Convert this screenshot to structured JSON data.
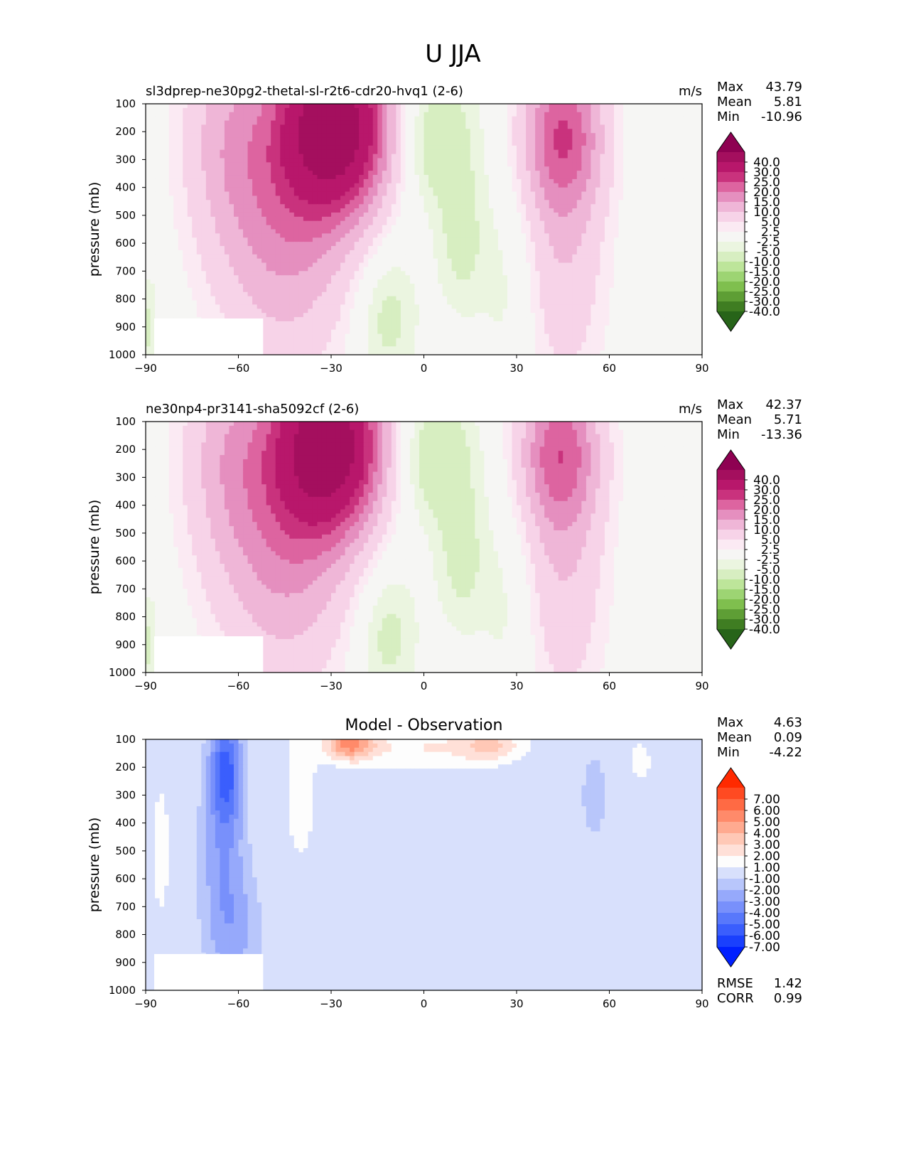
{
  "figure": {
    "title": "U JJA"
  },
  "chart_data": [
    {
      "type": "contour",
      "panel_title": "sl3dprep-ne30pg2-thetal-sl-r2t6-cdr20-hvq1 (2-6)",
      "units": "m/s",
      "ylabel": "pressure (mb)",
      "xlabel": "",
      "x_ticks": [
        -90,
        -60,
        -30,
        0,
        30,
        60,
        90
      ],
      "y_ticks": [
        100,
        200,
        300,
        400,
        500,
        600,
        700,
        800,
        900,
        1000
      ],
      "xlim": [
        -90,
        90
      ],
      "ylim": [
        1000,
        100
      ],
      "y_inverted": true,
      "stats": [
        {
          "label": "Max",
          "value": "43.79"
        },
        {
          "label": "Mean",
          "value": "5.81"
        },
        {
          "label": "Min",
          "value": "-10.96"
        }
      ],
      "colorbar": {
        "labels": [
          "40.0",
          "30.0",
          "25.0",
          "20.0",
          "15.0",
          "10.0",
          "5.0",
          "2.5",
          "-2.5",
          "-5.0",
          "-10.0",
          "-15.0",
          "-20.0",
          "-25.0",
          "-30.0",
          "-40.0"
        ],
        "colors": [
          "#8e0152",
          "#a40f5e",
          "#b8176b",
          "#c9327d",
          "#dd64a0",
          "#e58fbf",
          "#efb6d7",
          "#f7d3e8",
          "#fbeaf3",
          "#f6f6f4",
          "#ebf5e0",
          "#d7eec1",
          "#bde59a",
          "#9dd473",
          "#7fbf4e",
          "#5e9e35",
          "#3f7d22",
          "#276419"
        ]
      },
      "jets": [
        {
          "lat": -28,
          "p": 200,
          "u": 43.79
        },
        {
          "lat": 45,
          "p": 200,
          "u": 22
        }
      ]
    },
    {
      "type": "contour",
      "panel_title": "ne30np4-pr3141-sha5092cf (2-6)",
      "units": "m/s",
      "ylabel": "pressure (mb)",
      "xlabel": "",
      "x_ticks": [
        -90,
        -60,
        -30,
        0,
        30,
        60,
        90
      ],
      "y_ticks": [
        100,
        200,
        300,
        400,
        500,
        600,
        700,
        800,
        900,
        1000
      ],
      "xlim": [
        -90,
        90
      ],
      "ylim": [
        1000,
        100
      ],
      "y_inverted": true,
      "stats": [
        {
          "label": "Max",
          "value": "42.37"
        },
        {
          "label": "Mean",
          "value": "5.71"
        },
        {
          "label": "Min",
          "value": "-13.36"
        }
      ],
      "colorbar": {
        "labels": [
          "40.0",
          "30.0",
          "25.0",
          "20.0",
          "15.0",
          "10.0",
          "5.0",
          "2.5",
          "-2.5",
          "-5.0",
          "-10.0",
          "-15.0",
          "-20.0",
          "-25.0",
          "-30.0",
          "-40.0"
        ],
        "colors": [
          "#8e0152",
          "#a40f5e",
          "#b8176b",
          "#c9327d",
          "#dd64a0",
          "#e58fbf",
          "#efb6d7",
          "#f7d3e8",
          "#fbeaf3",
          "#f6f6f4",
          "#ebf5e0",
          "#d7eec1",
          "#bde59a",
          "#9dd473",
          "#7fbf4e",
          "#5e9e35",
          "#3f7d22",
          "#276419"
        ]
      },
      "jets": [
        {
          "lat": -30,
          "p": 200,
          "u": 42.37
        },
        {
          "lat": 44,
          "p": 200,
          "u": 21
        }
      ]
    },
    {
      "type": "contour",
      "panel_title": "Model - Observation",
      "units": "",
      "ylabel": "pressure (mb)",
      "xlabel": "",
      "x_ticks": [
        -90,
        -60,
        -30,
        0,
        30,
        60,
        90
      ],
      "y_ticks": [
        100,
        200,
        300,
        400,
        500,
        600,
        700,
        800,
        900,
        1000
      ],
      "xlim": [
        -90,
        90
      ],
      "ylim": [
        1000,
        100
      ],
      "y_inverted": true,
      "stats": [
        {
          "label": "Max",
          "value": "4.63"
        },
        {
          "label": "Mean",
          "value": "0.09"
        },
        {
          "label": "Min",
          "value": "-4.22"
        }
      ],
      "extra_stats": [
        {
          "label": "RMSE",
          "value": "1.42"
        },
        {
          "label": "CORR",
          "value": "0.99"
        }
      ],
      "colorbar": {
        "labels": [
          "7.00",
          "6.00",
          "5.00",
          "4.00",
          "3.00",
          "2.00",
          "1.00",
          "-1.00",
          "-2.00",
          "-3.00",
          "-4.00",
          "-5.00",
          "-6.00",
          "-7.00"
        ],
        "colors": [
          "#ff2a00",
          "#ff4a22",
          "#ff6a44",
          "#ff8a6a",
          "#ffaa90",
          "#ffc8b6",
          "#ffe0d8",
          "#fdfdfd",
          "#d8e0fc",
          "#b8c6fb",
          "#96a9fb",
          "#7890fb",
          "#5878fb",
          "#3a5efd",
          "#1a40fd",
          "#0020ff"
        ]
      },
      "anomalies": [
        {
          "lat": -64,
          "p": 200,
          "du": -4.22
        },
        {
          "lat": -25,
          "p": 120,
          "du": 4.63
        }
      ]
    }
  ]
}
